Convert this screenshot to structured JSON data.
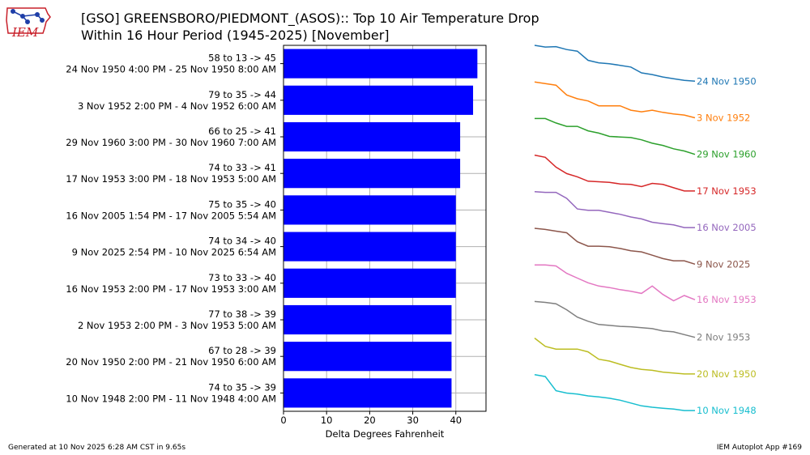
{
  "title": {
    "line1": "[GSO] GREENSBORO/PIEDMONT_(ASOS):: Top 10 Air Temperature Drop",
    "line2": "Within 16 Hour Period (1945-2025) [November]"
  },
  "logo": {
    "text": "IEM"
  },
  "footer": {
    "left": "Generated at 10 Nov 2025 6:28 AM CST in 9.65s",
    "right": "IEM Autoplot App #169"
  },
  "colors": {
    "bar": "#0000ff",
    "series": [
      "#1f77b4",
      "#ff7f0e",
      "#2ca02c",
      "#d62728",
      "#9467bd",
      "#8c564b",
      "#e377c2",
      "#7f7f7f",
      "#bcbd22",
      "#17becf"
    ]
  },
  "chart_data": {
    "type": "bar",
    "orientation": "horizontal",
    "xlabel": "Delta Degrees Fahrenheit",
    "xlim": [
      0,
      47
    ],
    "xticks": [
      0,
      10,
      20,
      30,
      40
    ],
    "grid": true,
    "bars": [
      {
        "label_top": "58 to 13 -> 45",
        "label_bottom": "24 Nov 1950 4:00 PM - 25 Nov 1950 8:00 AM",
        "value": 45
      },
      {
        "label_top": "79 to 35 -> 44",
        "label_bottom": "3 Nov 1952 2:00 PM - 4 Nov 1952 6:00 AM",
        "value": 44
      },
      {
        "label_top": "66 to 25 -> 41",
        "label_bottom": "29 Nov 1960 3:00 PM - 30 Nov 1960 7:00 AM",
        "value": 41
      },
      {
        "label_top": "74 to 33 -> 41",
        "label_bottom": "17 Nov 1953 3:00 PM - 18 Nov 1953 5:00 AM",
        "value": 41
      },
      {
        "label_top": "75 to 35 -> 40",
        "label_bottom": "16 Nov 2005 1:54 PM - 17 Nov 2005 5:54 AM",
        "value": 40
      },
      {
        "label_top": "74 to 34 -> 40",
        "label_bottom": "9 Nov 2025 2:54 PM - 10 Nov 2025 6:54 AM",
        "value": 40
      },
      {
        "label_top": "73 to 33 -> 40",
        "label_bottom": "16 Nov 1953 2:00 PM - 17 Nov 1953 3:00 AM",
        "value": 40
      },
      {
        "label_top": "77 to 38 -> 39",
        "label_bottom": "2 Nov 1953 2:00 PM - 3 Nov 1953 5:00 AM",
        "value": 39
      },
      {
        "label_top": "67 to 28 -> 39",
        "label_bottom": "20 Nov 1950 2:00 PM - 21 Nov 1950 6:00 AM",
        "value": 39
      },
      {
        "label_top": "74 to 35 -> 39",
        "label_bottom": "10 Nov 1948 2:00 PM - 11 Nov 1948 4:00 AM",
        "value": 39
      }
    ],
    "sparklines": [
      {
        "label": "24 Nov 1950",
        "values": [
          58,
          57,
          57.2,
          55.5,
          54.5,
          49,
          47.5,
          47,
          46,
          45,
          41.5,
          40.5,
          39,
          38,
          37,
          36.5
        ]
      },
      {
        "label": "3 Nov 1952",
        "values": [
          79,
          77.5,
          76,
          67,
          63.5,
          61.5,
          57,
          57,
          57,
          53,
          51.5,
          53,
          51,
          49.5,
          48.5,
          46
        ]
      },
      {
        "label": "29 Nov 1960",
        "values": [
          66,
          66,
          62,
          59,
          59,
          55,
          53,
          50,
          49.5,
          49,
          47,
          44,
          42,
          39,
          37,
          34
        ]
      },
      {
        "label": "17 Nov 1953",
        "values": [
          74,
          72,
          63,
          57,
          54,
          50,
          49.5,
          49,
          47.5,
          47,
          45,
          48,
          47,
          44,
          41,
          41
        ]
      },
      {
        "label": "16 Nov 2005",
        "values": [
          75,
          74.5,
          74.5,
          70,
          62,
          61,
          61,
          59.5,
          58,
          56,
          54.5,
          52,
          51,
          50,
          48,
          48
        ]
      },
      {
        "label": "9 Nov 2025",
        "values": [
          74,
          73,
          71.5,
          70,
          62,
          58,
          58,
          57.5,
          56,
          54,
          53,
          50,
          47,
          45,
          45,
          42
        ]
      },
      {
        "label": "16 Nov 1953",
        "values": [
          73,
          73,
          72,
          65,
          60.5,
          56,
          53,
          51.5,
          49.5,
          48,
          46,
          53,
          45,
          39,
          44,
          40
        ]
      },
      {
        "label": "2 Nov 1953",
        "values": [
          77,
          76,
          74.5,
          68,
          60,
          55.5,
          52,
          51,
          50,
          49.5,
          48.5,
          47.5,
          45,
          44,
          41,
          38
        ]
      },
      {
        "label": "20 Nov 1950",
        "values": [
          67,
          58,
          55,
          55,
          55,
          52,
          44,
          42,
          38.5,
          35,
          33,
          32,
          30,
          29,
          28,
          28
        ]
      },
      {
        "label": "10 Nov 1948",
        "values": [
          74,
          72,
          57,
          54.5,
          53.5,
          51.5,
          50.5,
          49,
          47,
          44,
          41,
          39.5,
          38.5,
          37.5,
          36,
          36
        ]
      }
    ]
  }
}
